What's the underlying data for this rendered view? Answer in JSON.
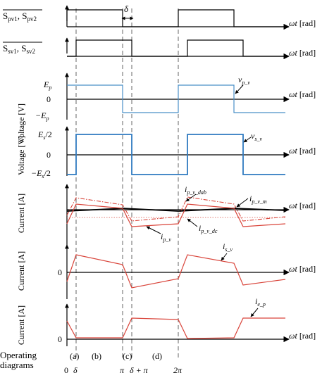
{
  "panels": {
    "sp_switch": {
      "label_a": "S",
      "label_a_sub": "pv1",
      "label_b": "S",
      "label_b_sub": "pv2",
      "sep": ", "
    },
    "ss_switch": {
      "label_a": "S",
      "label_a_sub": "sv1",
      "label_b": "S",
      "label_b_sub": "sv2",
      "sep": ", "
    },
    "vp": {
      "ylabel": "Voltage [V]",
      "tick_top": "E",
      "tick_top_sub": "p",
      "tick_zero": "0",
      "tick_bot": "−E",
      "tick_bot_sub": "p",
      "curve": "v",
      "curve_sub": "p_v"
    },
    "vs": {
      "ylabel": "Voltage [V]",
      "tick_top": "E",
      "tick_top_sub": "s",
      "tick_top_tail": "/2",
      "tick_zero": "0",
      "tick_bot": "−E",
      "tick_bot_sub": "s",
      "tick_bot_tail": "/2",
      "curve": "v",
      "curve_sub": "s_v"
    },
    "ip": {
      "ylabel": "Current [A]",
      "curve_dab": "i",
      "curve_dab_sub": "p_v_dab",
      "curve_m": "i",
      "curve_m_sub": "p_v_m",
      "curve_dc": "i",
      "curve_dc_sub": "p_v_dc",
      "curve": "i",
      "curve_sub": "p_v"
    },
    "is": {
      "ylabel": "Current [A]",
      "tick_zero": "0",
      "curve": "i",
      "curve_sub": "s_v"
    },
    "ie": {
      "ylabel": "Current [A]",
      "tick_zero": "0",
      "curve": "i",
      "curve_sub": "e_p"
    }
  },
  "x_axis_label": "ωt [rad]",
  "delta_label": "δ",
  "footer": {
    "caption_line1": "Operating",
    "caption_line2": "diagrams",
    "regions": [
      "(a)",
      "(b)",
      "(c)",
      "(d)"
    ],
    "ticks": [
      "0",
      "δ",
      "π",
      "δ + π",
      "2π"
    ]
  },
  "colors": {
    "voltage": "#4a90c8",
    "current": "#d9443a",
    "axis": "#000000"
  }
}
